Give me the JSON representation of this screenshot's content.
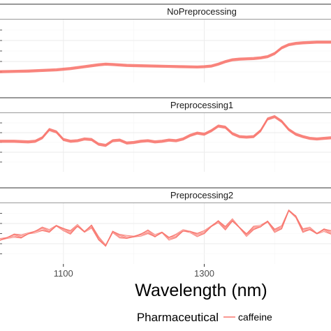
{
  "chart_data": {
    "type": "line",
    "colors": {
      "series": "#F8766D",
      "strip_bg": "#ffffff",
      "strip_border": "#333333",
      "grid_major": "#ebebeb",
      "grid_minor": "#f5f5f5"
    },
    "xlabel": "Wavelength (nm)",
    "x_ticks": [
      1100,
      1300
    ],
    "xlim": [
      1010,
      1480
    ],
    "legend": {
      "title": "Pharmaceutical",
      "entries": [
        "caffeine"
      ],
      "placement": "bottom"
    },
    "panels": [
      {
        "title": "NoPreprocessing",
        "ylim": [
          0,
          100
        ],
        "series": [
          {
            "name": "caffeine",
            "x": [
              1010,
              1030,
              1050,
              1070,
              1090,
              1110,
              1130,
              1150,
              1160,
              1170,
              1190,
              1210,
              1230,
              1250,
              1270,
              1290,
              1300,
              1310,
              1320,
              1330,
              1340,
              1350,
              1360,
              1370,
              1380,
              1390,
              1400,
              1410,
              1420,
              1430,
              1440,
              1450,
              1460,
              1470,
              1480
            ],
            "y": [
              17,
              17.5,
              18,
              19,
              20,
              22,
              25,
              28,
              29,
              28.5,
              27,
              26.5,
              26,
              25.5,
              25,
              24.5,
              25,
              26,
              29,
              33,
              36,
              37,
              37.5,
              38,
              39,
              41,
              46,
              55,
              60,
              62,
              63,
              63.5,
              64,
              64,
              64
            ]
          }
        ]
      },
      {
        "title": "Preprocessing1",
        "ylim": [
          0,
          100
        ],
        "series": [
          {
            "name": "caffeine",
            "x": [
              1010,
              1030,
              1050,
              1060,
              1070,
              1080,
              1090,
              1100,
              1110,
              1120,
              1130,
              1140,
              1150,
              1160,
              1170,
              1180,
              1190,
              1200,
              1210,
              1220,
              1230,
              1240,
              1250,
              1260,
              1270,
              1280,
              1290,
              1300,
              1310,
              1320,
              1330,
              1340,
              1350,
              1360,
              1370,
              1380,
              1390,
              1400,
              1410,
              1420,
              1430,
              1440,
              1450,
              1460,
              1470,
              1480
            ],
            "y": [
              52,
              52,
              51,
              52,
              58,
              72,
              68,
              55,
              52,
              53,
              56,
              55,
              47,
              45,
              53,
              54,
              49,
              50,
              52,
              53,
              51,
              52,
              54,
              53,
              56,
              62,
              66,
              64,
              70,
              78,
              76,
              65,
              60,
              59,
              60,
              70,
              90,
              94,
              86,
              72,
              64,
              60,
              57,
              56,
              57,
              58
            ]
          }
        ]
      },
      {
        "title": "Preprocessing2",
        "ylim": [
          0,
          100
        ],
        "series": [
          {
            "name": "caffeine",
            "x": [
              1010,
              1020,
              1030,
              1040,
              1050,
              1060,
              1070,
              1080,
              1090,
              1100,
              1110,
              1120,
              1130,
              1140,
              1150,
              1160,
              1170,
              1180,
              1190,
              1200,
              1210,
              1220,
              1230,
              1240,
              1250,
              1260,
              1270,
              1280,
              1290,
              1300,
              1310,
              1320,
              1330,
              1340,
              1350,
              1360,
              1370,
              1380,
              1390,
              1400,
              1410,
              1420,
              1430,
              1440,
              1450,
              1460,
              1470,
              1480
            ],
            "y": [
              40,
              43,
              47,
              45,
              50,
              53,
              58,
              54,
              63,
              57,
              52,
              63,
              53,
              62,
              42,
              30,
              53,
              46,
              44,
              45,
              48,
              53,
              46,
              52,
              42,
              46,
              55,
              53,
              48,
              52,
              62,
              70,
              59,
              72,
              60,
              48,
              59,
              62,
              70,
              55,
              60,
              88,
              78,
              55,
              58,
              50,
              56,
              52
            ]
          }
        ]
      }
    ]
  }
}
